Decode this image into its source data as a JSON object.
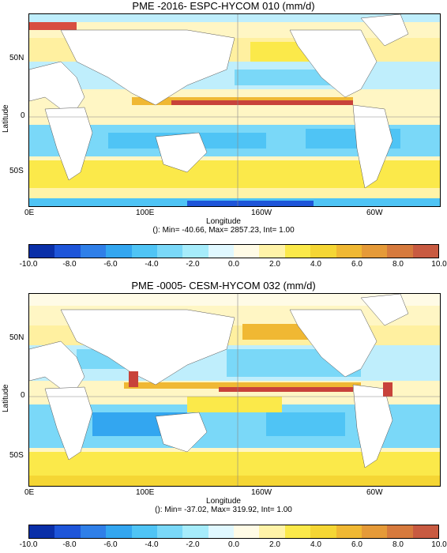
{
  "colorbar": {
    "colors": [
      "#0a2fa8",
      "#1e55d9",
      "#2f7fe8",
      "#33a6f0",
      "#4fc4f5",
      "#7ad8f8",
      "#a6ecfb",
      "#e0f8ff",
      "#fffbe6",
      "#fff3a8",
      "#fbe94a",
      "#f5d634",
      "#f0b833",
      "#e59a38",
      "#d67a3d",
      "#c85a41"
    ],
    "ticks": [
      "-10.0",
      "-8.0",
      "-6.0",
      "-4.0",
      "-2.0",
      "0.0",
      "2.0",
      "4.0",
      "6.0",
      "8.0",
      "10.0"
    ]
  },
  "panels": [
    {
      "title": "PME -2016- ESPC-HYCOM 010 (mm/d)",
      "ylabel": "Latitude",
      "xlabel": "Longitude",
      "stats": "(): Min= -40.66, Max= 2857.23, Int= 1.00",
      "lat_ticks": [
        "50N",
        "0",
        "50S"
      ],
      "lon_ticks": [
        "0E",
        "100E",
        "160W",
        "60W"
      ]
    },
    {
      "title": "PME -0005- CESM-HYCOM 032 (mm/d)",
      "ylabel": "Latitude",
      "xlabel": "Longitude",
      "stats": "(): Min= -37.02, Max= 319.92, Int= 1.00",
      "lat_ticks": [
        "50N",
        "0",
        "50S"
      ],
      "lon_ticks": [
        "0E",
        "100E",
        "160W",
        "60W"
      ]
    }
  ]
}
